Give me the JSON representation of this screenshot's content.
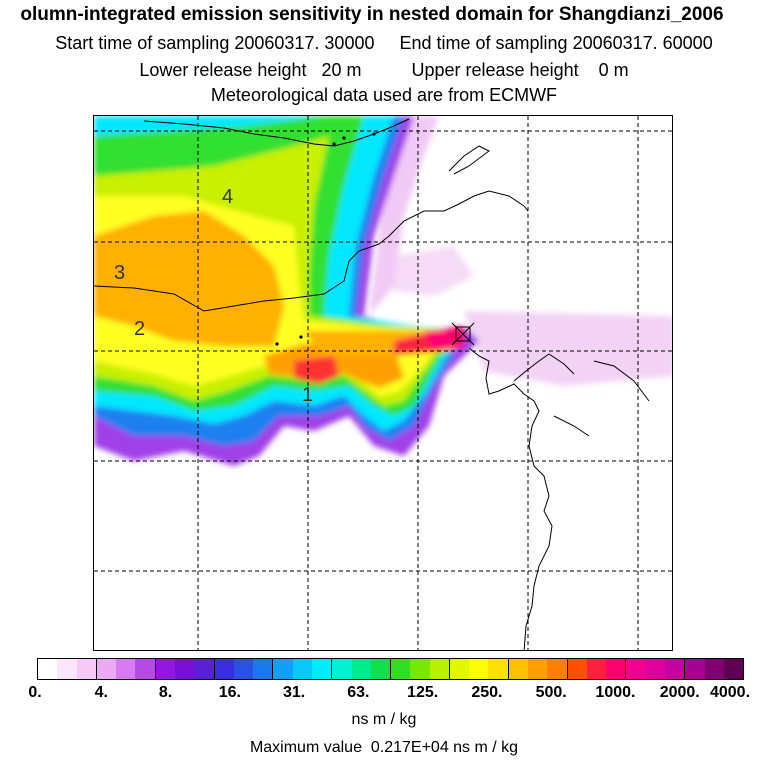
{
  "title": {
    "line1": "olumn-integrated emission sensitivity in nested domain for Shangdianzi_2006",
    "line2": "Start time of sampling 20060317. 30000     End time of sampling 20060317. 60000",
    "line3": "Lower release height   20 m          Upper release height    0 m",
    "line4": "Meteorological data used are from ECMWF"
  },
  "contour_labels": [
    "4",
    "3",
    "2",
    "1"
  ],
  "legend": {
    "labels": [
      "0.",
      "4.",
      "8.",
      "16.",
      "31.",
      "63.",
      "125.",
      "250.",
      "500.",
      "1000.",
      "2000.",
      "4000."
    ],
    "colors": [
      "#ffffff",
      "#fbe6fb",
      "#f5c8f7",
      "#ecaaf2",
      "#d77cf0",
      "#b64ce8",
      "#9218e0",
      "#7a10d8",
      "#5a20d8",
      "#3a2ee0",
      "#2a50e6",
      "#1a78ee",
      "#10a0f6",
      "#08c8fa",
      "#00ecff",
      "#00f0d0",
      "#00ea90",
      "#10e050",
      "#30e020",
      "#78e800",
      "#b8f000",
      "#e0f800",
      "#ffff00",
      "#ffe000",
      "#ffc000",
      "#ffa000",
      "#ff8000",
      "#ff5000",
      "#ff2040",
      "#ff0070",
      "#f40090",
      "#e000a0",
      "#c800a0",
      "#a80090",
      "#800070",
      "#600050"
    ],
    "units": "ns m / kg",
    "max_value": "Maximum value  0.217E+04 ns m / kg"
  },
  "release_marker": "×"
}
